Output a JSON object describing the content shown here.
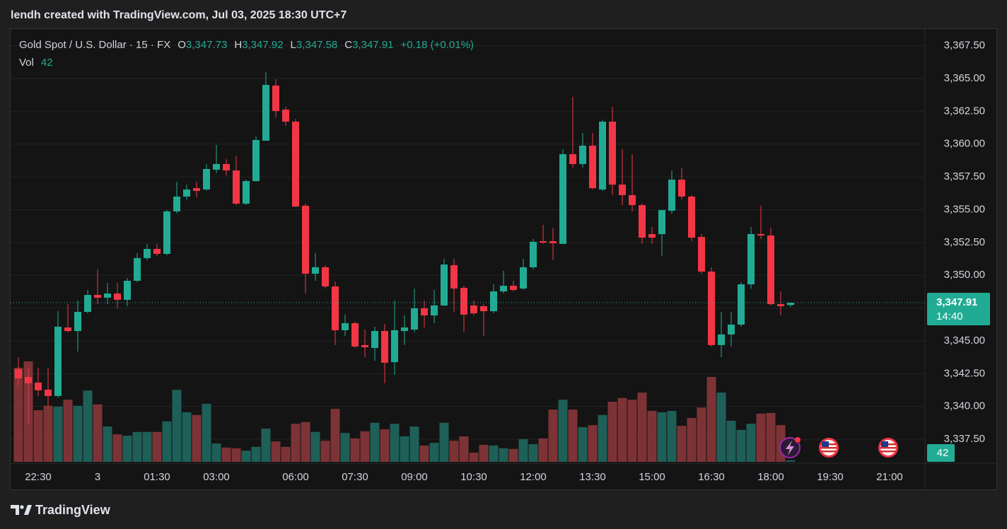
{
  "header": {
    "caption": "lendh created with TradingView.com, Jul 03, 2025 18:30 UTC+7"
  },
  "chart_data": {
    "type": "candlestick",
    "symbol": "Gold Spot / U.S. Dollar · 15 · FX",
    "legend_labels": {
      "open": "O",
      "high": "H",
      "low": "L",
      "close": "C",
      "volume": "Vol"
    },
    "ohlc_labels": {
      "open": "3,347.73",
      "high": "3,347.92",
      "low": "3,347.58",
      "close": "3,347.91"
    },
    "change_label": "+0.18 (+0.01%)",
    "countdown": "14:40",
    "categories": [
      null,
      null,
      "22:30",
      null,
      null,
      null,
      null,
      null,
      "3",
      null,
      null,
      null,
      null,
      null,
      "01:30",
      null,
      null,
      null,
      null,
      null,
      "03:00",
      null,
      null,
      null,
      null,
      null,
      null,
      null,
      "06:00",
      null,
      null,
      null,
      null,
      null,
      "07:30",
      null,
      null,
      null,
      null,
      null,
      "09:00",
      null,
      null,
      null,
      null,
      null,
      "10:30",
      null,
      null,
      null,
      null,
      null,
      "12:00",
      null,
      null,
      null,
      null,
      null,
      "13:30",
      null,
      null,
      null,
      null,
      null,
      "15:00",
      null,
      null,
      null,
      null,
      null,
      "16:30",
      null,
      null,
      null,
      null,
      null,
      "18:00",
      null,
      null,
      null,
      null,
      null,
      "19:30",
      null,
      null,
      null,
      null,
      null,
      "21:00",
      null,
      null,
      null
    ],
    "open": [
      3342.84,
      3342.25,
      3341.82,
      3341.28,
      3340.8,
      3346.02,
      3345.75,
      3347.21,
      3348.5,
      3348.29,
      3348.61,
      3348.13,
      3349.58,
      3351.31,
      3352.01,
      3351.63,
      3354.87,
      3356.0,
      3356.64,
      3356.54,
      3358.05,
      3358.48,
      3357.99,
      3355.46,
      3357.18,
      3360.26,
      3364.46,
      3362.63,
      3361.71,
      3355.3,
      3350.12,
      3350.61,
      3349.15,
      3345.81,
      3346.35,
      3344.68,
      3344.46,
      3345.75,
      3343.38,
      3345.75,
      3345.86,
      3347.48,
      3346.94,
      3347.7,
      3350.77,
      3349.04,
      3347.7,
      3347.64,
      3347.26,
      3348.77,
      3349.2,
      3348.99,
      3350.61,
      3352.6,
      3352.6,
      3352.39,
      3359.23,
      3358.48,
      3359.88,
      3356.54,
      3361.71,
      3356.91,
      3356.11,
      3355.35,
      3353.14,
      3353.14,
      3354.92,
      3357.29,
      3356.0,
      3352.92,
      3350.28,
      3344.68,
      3345.49,
      3346.24,
      3349.31,
      3353.14,
      3353.03,
      3347.8,
      3347.73,
      null,
      null,
      null,
      null,
      null,
      null,
      null,
      null,
      null,
      null,
      null,
      null,
      null
    ],
    "high": [
      3343.76,
      3342.95,
      3342.95,
      3342.95,
      3347.26,
      3347.8,
      3348.07,
      3348.88,
      3350.44,
      3349.42,
      3349.42,
      3349.8,
      3351.68,
      3352.39,
      3352.39,
      3354.97,
      3357.13,
      3356.91,
      3357.13,
      3358.48,
      3359.93,
      3358.85,
      3359.12,
      3357.29,
      3360.58,
      3365.49,
      3364.95,
      3362.84,
      3361.93,
      3355.46,
      3351.68,
      3350.77,
      3349.53,
      3347.0,
      3346.46,
      3345.86,
      3346.08,
      3346.29,
      3348.07,
      3346.94,
      3348.99,
      3348.07,
      3348.88,
      3351.25,
      3351.25,
      3349.2,
      3348.07,
      3347.8,
      3349.31,
      3350.34,
      3349.58,
      3351.25,
      3352.76,
      3353.84,
      3353.63,
      3359.61,
      3363.6,
      3360.85,
      3360.85,
      3361.87,
      3362.84,
      3359.61,
      3359.23,
      3355.46,
      3353.68,
      3354.97,
      3357.99,
      3358.21,
      3356.11,
      3353.14,
      3350.61,
      3347.21,
      3347.21,
      3349.47,
      3353.68,
      3355.3,
      3353.63,
      3348.77,
      3347.92,
      null,
      null,
      null,
      null,
      null,
      null,
      null,
      null,
      null,
      null,
      null,
      null,
      null
    ],
    "low": [
      3341.6,
      3338.64,
      3340.8,
      3339.99,
      3340.69,
      3345.65,
      3344.19,
      3347.1,
      3347.8,
      3347.8,
      3347.48,
      3347.64,
      3349.47,
      3351.15,
      3351.47,
      3351.52,
      3354.7,
      3355.78,
      3355.94,
      3356.43,
      3357.78,
      3357.61,
      3355.35,
      3355.35,
      3357.13,
      3360.26,
      3362.03,
      3361.39,
      3355.19,
      3348.61,
      3349.58,
      3348.99,
      3344.68,
      3345.38,
      3344.46,
      3343.76,
      3343.49,
      3341.77,
      3342.41,
      3344.68,
      3345.65,
      3346.02,
      3346.35,
      3347.64,
      3347.21,
      3345.65,
      3346.94,
      3345.38,
      3347.1,
      3348.61,
      3348.77,
      3348.88,
      3350.44,
      3352.39,
      3351.15,
      3352.39,
      3358.21,
      3358.21,
      3356.54,
      3356.43,
      3356.11,
      3355.35,
      3354.87,
      3352.39,
      3352.39,
      3351.47,
      3354.7,
      3355.78,
      3352.6,
      3350.12,
      3344.57,
      3343.76,
      3344.57,
      3346.08,
      3348.99,
      3352.76,
      3347.7,
      3346.94,
      3347.58,
      null,
      null,
      null,
      null,
      null,
      null,
      null,
      null,
      null,
      null,
      null,
      null,
      null
    ],
    "close": [
      3342.14,
      3341.77,
      3341.23,
      3340.8,
      3346.08,
      3345.75,
      3347.21,
      3348.5,
      3348.29,
      3348.61,
      3348.13,
      3349.58,
      3351.31,
      3352.01,
      3351.63,
      3354.87,
      3356.0,
      3356.54,
      3356.43,
      3358.1,
      3358.48,
      3357.99,
      3355.46,
      3357.18,
      3360.31,
      3364.51,
      3362.52,
      3361.71,
      3355.24,
      3350.12,
      3350.61,
      3349.15,
      3345.81,
      3346.35,
      3344.57,
      3344.51,
      3345.75,
      3343.33,
      3345.81,
      3346.02,
      3347.48,
      3346.94,
      3347.7,
      3350.82,
      3348.99,
      3347.0,
      3347.1,
      3347.26,
      3348.77,
      3349.2,
      3348.88,
      3350.61,
      3352.55,
      3352.49,
      3352.44,
      3359.23,
      3358.48,
      3359.88,
      3356.64,
      3361.71,
      3356.91,
      3356.11,
      3355.35,
      3352.87,
      3352.87,
      3354.97,
      3357.29,
      3356.0,
      3352.87,
      3350.28,
      3344.68,
      3345.49,
      3346.24,
      3349.31,
      3353.14,
      3353.03,
      3347.8,
      3347.64,
      3347.91,
      null,
      null,
      null,
      null,
      null,
      null,
      null,
      null,
      null,
      null,
      null,
      null,
      null
    ],
    "volume": [
      2770,
      2960,
      1520,
      1650,
      1625,
      1830,
      1650,
      2100,
      1690,
      1040,
      810,
      770,
      880,
      880,
      880,
      1190,
      2120,
      1460,
      1380,
      1710,
      540,
      420,
      400,
      330,
      440,
      980,
      600,
      440,
      1120,
      1170,
      880,
      620,
      1560,
      850,
      690,
      900,
      1150,
      960,
      1120,
      750,
      1040,
      480,
      560,
      1150,
      620,
      750,
      270,
      500,
      480,
      400,
      380,
      670,
      520,
      690,
      1540,
      1830,
      1540,
      1020,
      1080,
      1380,
      1770,
      1880,
      1830,
      2040,
      1500,
      1460,
      1500,
      1060,
      1290,
      1600,
      2500,
      2040,
      1210,
      940,
      1120,
      1420,
      1440,
      1080,
      42,
      null,
      null,
      null,
      null,
      null,
      null,
      null,
      null,
      null,
      null,
      null,
      null,
      null
    ],
    "ylim": [
      3335.78,
      3368.72
    ],
    "yticks": [
      {
        "value": 3337.5,
        "label": "3,337.50"
      },
      {
        "value": 3340,
        "label": "3,340.00"
      },
      {
        "value": 3342.5,
        "label": "3,342.50"
      },
      {
        "value": 3345,
        "label": "3,345.00"
      },
      {
        "value": 3347.5,
        "label": "3,347.50"
      },
      {
        "value": 3350,
        "label": "3,350.00"
      },
      {
        "value": 3352.5,
        "label": "3,352.50"
      },
      {
        "value": 3355,
        "label": "3,355.00"
      },
      {
        "value": 3357.5,
        "label": "3,357.50"
      },
      {
        "value": 3360,
        "label": "3,360.00"
      },
      {
        "value": 3362.5,
        "label": "3,362.50"
      },
      {
        "value": 3365,
        "label": "3,365.00"
      },
      {
        "value": 3367.5,
        "label": "3,367.50"
      }
    ],
    "volume_lim": [
      0,
      3000
    ],
    "grid": true,
    "up_color": "#22ab94",
    "down_color": "#f23645",
    "volume_up_color": "#1e5f58",
    "volume_down_color": "#7d3336"
  },
  "footer": {
    "brand": "TradingView"
  }
}
